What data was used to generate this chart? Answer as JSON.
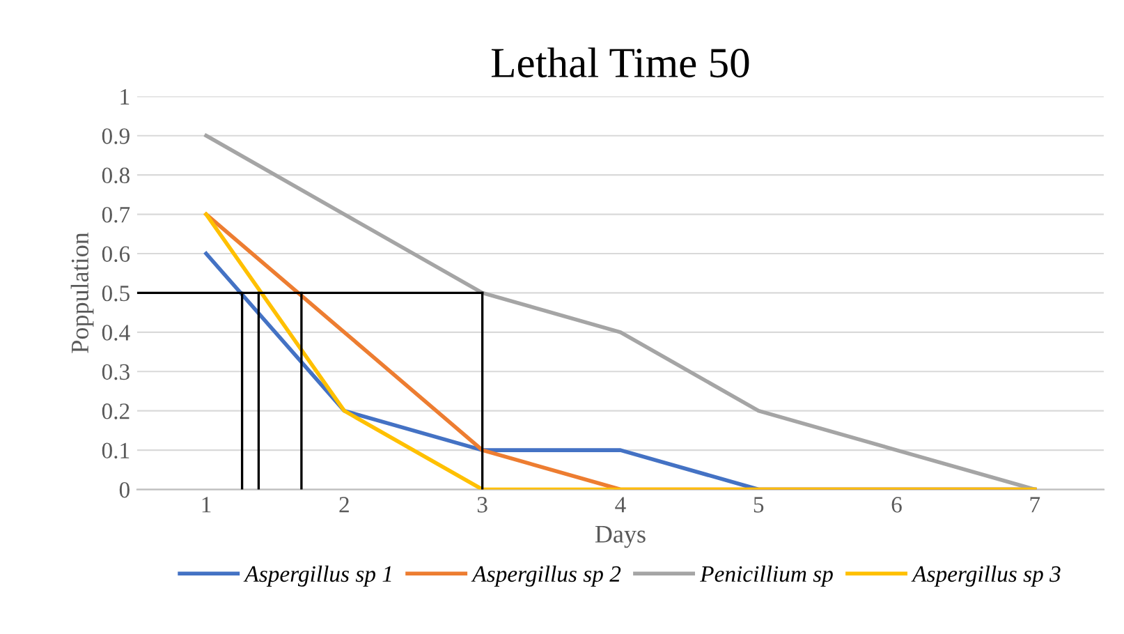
{
  "chart_data": {
    "type": "line",
    "title": "Lethal Time 50",
    "xlabel": "Days",
    "ylabel": "Poppulation",
    "x": [
      1,
      2,
      3,
      4,
      5,
      6,
      7
    ],
    "xlim": [
      0.5,
      7.5
    ],
    "xticks": [
      1,
      2,
      3,
      4,
      5,
      6,
      7
    ],
    "ylim": [
      0,
      1
    ],
    "yticks": [
      0,
      0.1,
      0.2,
      0.3,
      0.4,
      0.5,
      0.6,
      0.7,
      0.8,
      0.9,
      1
    ],
    "grid": "y",
    "legend": "bottom",
    "marker": "none",
    "line_style": "solid",
    "series": [
      {
        "name": "Aspergillus sp 1",
        "color": "#4472c4",
        "values": [
          0.6,
          0.2,
          0.1,
          0.1,
          0,
          0,
          0
        ]
      },
      {
        "name": "Aspergillus sp 2",
        "color": "#ed7d31",
        "values": [
          0.7,
          0.4,
          0.1,
          0,
          0,
          0,
          0
        ]
      },
      {
        "name": "Penicillium sp",
        "color": "#a5a5a5",
        "values": [
          0.9,
          0.7,
          0.5,
          0.4,
          0.2,
          0.1,
          0
        ]
      },
      {
        "name": "Aspergillus sp 3",
        "color": "#ffc000",
        "values": [
          0.7,
          0.2,
          0,
          0,
          0,
          0,
          0
        ]
      },
      {
        "color": "#000000",
        "x": [
          0.5,
          3
        ],
        "values": [
          0.5,
          0.5
        ]
      },
      {
        "color": "#000000",
        "x": [
          1.26,
          1.26
        ],
        "values": [
          0,
          0.5
        ]
      },
      {
        "color": "#000000",
        "x": [
          1.38,
          1.38
        ],
        "values": [
          0,
          0.5
        ]
      },
      {
        "color": "#000000",
        "x": [
          1.69,
          1.69
        ],
        "values": [
          0,
          0.5
        ]
      },
      {
        "color": "#000000",
        "x": [
          3,
          3
        ],
        "values": [
          0,
          0.5
        ]
      }
    ]
  }
}
